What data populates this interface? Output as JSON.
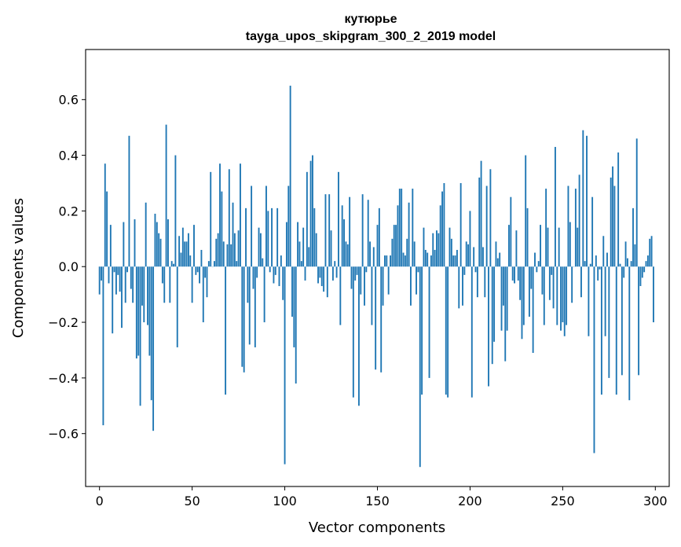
{
  "chart_data": {
    "type": "bar",
    "title": "кутюрье",
    "subtitle": "tayga_upos_skipgram_300_2_2019 model",
    "xlabel": "Vector components",
    "ylabel": "Components values",
    "xlim": [
      -7.5,
      307.5
    ],
    "ylim": [
      -0.79,
      0.78
    ],
    "xticks": [
      0,
      50,
      100,
      150,
      200,
      250,
      300
    ],
    "yticks": [
      -0.6,
      -0.4,
      -0.2,
      0.0,
      0.2,
      0.4,
      0.6
    ],
    "ytick_labels": [
      "−0.6",
      "−0.4",
      "−0.2",
      "0.0",
      "0.2",
      "0.4",
      "0.6"
    ],
    "bar_color": "#1f77b4",
    "x": [
      0,
      1,
      2,
      3,
      4,
      5,
      6,
      7,
      8,
      9,
      10,
      11,
      12,
      13,
      14,
      15,
      16,
      17,
      18,
      19,
      20,
      21,
      22,
      23,
      24,
      25,
      26,
      27,
      28,
      29,
      30,
      31,
      32,
      33,
      34,
      35,
      36,
      37,
      38,
      39,
      40,
      41,
      42,
      43,
      44,
      45,
      46,
      47,
      48,
      49,
      50,
      51,
      52,
      53,
      54,
      55,
      56,
      57,
      58,
      59,
      60,
      61,
      62,
      63,
      64,
      65,
      66,
      67,
      68,
      69,
      70,
      71,
      72,
      73,
      74,
      75,
      76,
      77,
      78,
      79,
      80,
      81,
      82,
      83,
      84,
      85,
      86,
      87,
      88,
      89,
      90,
      91,
      92,
      93,
      94,
      95,
      96,
      97,
      98,
      99,
      100,
      101,
      102,
      103,
      104,
      105,
      106,
      107,
      108,
      109,
      110,
      111,
      112,
      113,
      114,
      115,
      116,
      117,
      118,
      119,
      120,
      121,
      122,
      123,
      124,
      125,
      126,
      127,
      128,
      129,
      130,
      131,
      132,
      133,
      134,
      135,
      136,
      137,
      138,
      139,
      140,
      141,
      142,
      143,
      144,
      145,
      146,
      147,
      148,
      149,
      150,
      151,
      152,
      153,
      154,
      155,
      156,
      157,
      158,
      159,
      160,
      161,
      162,
      163,
      164,
      165,
      166,
      167,
      168,
      169,
      170,
      171,
      172,
      173,
      174,
      175,
      176,
      177,
      178,
      179,
      180,
      181,
      182,
      183,
      184,
      185,
      186,
      187,
      188,
      189,
      190,
      191,
      192,
      193,
      194,
      195,
      196,
      197,
      198,
      199,
      200,
      201,
      202,
      203,
      204,
      205,
      206,
      207,
      208,
      209,
      210,
      211,
      212,
      213,
      214,
      215,
      216,
      217,
      218,
      219,
      220,
      221,
      222,
      223,
      224,
      225,
      226,
      227,
      228,
      229,
      230,
      231,
      232,
      233,
      234,
      235,
      236,
      237,
      238,
      239,
      240,
      241,
      242,
      243,
      244,
      245,
      246,
      247,
      248,
      249,
      250,
      251,
      252,
      253,
      254,
      255,
      256,
      257,
      258,
      259,
      260,
      261,
      262,
      263,
      264,
      265,
      266,
      267,
      268,
      269,
      270,
      271,
      272,
      273,
      274,
      275,
      276,
      277,
      278,
      279,
      280,
      281,
      282,
      283,
      284,
      285,
      286,
      287,
      288,
      289,
      290,
      291,
      292,
      293,
      294,
      295,
      296,
      297,
      298,
      299
    ],
    "values": [
      -0.1,
      -0.05,
      -0.57,
      0.37,
      0.27,
      -0.06,
      0.15,
      -0.24,
      -0.02,
      -0.1,
      -0.03,
      -0.09,
      -0.22,
      0.16,
      -0.13,
      -0.02,
      0.47,
      -0.08,
      -0.13,
      0.17,
      -0.33,
      -0.32,
      -0.5,
      -0.14,
      -0.2,
      0.23,
      -0.21,
      -0.32,
      -0.48,
      -0.59,
      0.19,
      0.16,
      0.12,
      0.1,
      -0.06,
      -0.13,
      0.51,
      0.17,
      -0.13,
      0.02,
      0.01,
      0.4,
      -0.29,
      0.11,
      0.05,
      0.14,
      0.09,
      0.09,
      0.12,
      0.04,
      -0.13,
      0.15,
      -0.03,
      -0.02,
      -0.06,
      0.06,
      -0.2,
      -0.04,
      -0.11,
      0.02,
      0.34,
      0.0,
      0.02,
      0.1,
      0.12,
      0.37,
      0.27,
      0.09,
      -0.46,
      0.08,
      0.35,
      0.08,
      0.23,
      0.12,
      0.02,
      0.13,
      0.37,
      -0.36,
      -0.38,
      0.21,
      -0.13,
      -0.28,
      0.29,
      -0.08,
      -0.29,
      -0.04,
      0.14,
      0.12,
      0.03,
      -0.2,
      0.29,
      0.2,
      -0.02,
      0.21,
      -0.06,
      -0.03,
      0.21,
      -0.07,
      0.04,
      -0.12,
      -0.71,
      0.16,
      0.29,
      0.65,
      -0.18,
      -0.29,
      -0.42,
      0.16,
      0.09,
      0.02,
      0.14,
      -0.05,
      0.34,
      0.07,
      0.38,
      0.4,
      0.21,
      0.12,
      -0.06,
      -0.04,
      -0.07,
      -0.09,
      0.26,
      -0.11,
      0.26,
      0.13,
      -0.05,
      0.02,
      -0.04,
      0.34,
      -0.21,
      0.22,
      0.17,
      0.09,
      0.08,
      0.25,
      -0.08,
      -0.47,
      -0.05,
      -0.03,
      -0.5,
      -0.1,
      0.26,
      -0.14,
      -0.02,
      0.24,
      0.09,
      -0.21,
      0.07,
      -0.37,
      0.15,
      0.21,
      -0.38,
      -0.14,
      0.04,
      0.04,
      -0.1,
      0.04,
      0.1,
      0.15,
      0.15,
      0.22,
      0.28,
      0.28,
      0.05,
      0.04,
      0.1,
      0.23,
      -0.14,
      0.28,
      0.09,
      -0.1,
      -0.02,
      -0.72,
      -0.46,
      0.14,
      0.06,
      0.05,
      -0.4,
      0.04,
      0.12,
      0.06,
      0.13,
      0.12,
      0.22,
      0.27,
      0.3,
      -0.46,
      -0.47,
      0.14,
      0.1,
      0.04,
      0.04,
      0.06,
      -0.15,
      0.3,
      -0.14,
      -0.03,
      0.09,
      0.08,
      0.2,
      -0.47,
      0.07,
      -0.02,
      -0.11,
      0.32,
      0.38,
      0.07,
      -0.11,
      0.29,
      -0.43,
      0.35,
      -0.35,
      -0.27,
      0.09,
      0.03,
      0.05,
      -0.23,
      -0.14,
      -0.34,
      -0.23,
      0.15,
      0.25,
      -0.05,
      -0.06,
      0.13,
      -0.05,
      -0.12,
      -0.26,
      -0.21,
      0.4,
      0.21,
      -0.18,
      -0.08,
      -0.31,
      0.05,
      -0.02,
      0.02,
      0.15,
      -0.1,
      -0.21,
      0.28,
      0.14,
      -0.12,
      -0.03,
      -0.15,
      0.43,
      -0.21,
      0.14,
      -0.23,
      -0.2,
      -0.25,
      -0.21,
      0.29,
      0.16,
      -0.13,
      0.0,
      0.28,
      0.14,
      0.33,
      -0.11,
      0.49,
      0.02,
      0.47,
      -0.25,
      0.01,
      0.25,
      -0.67,
      0.04,
      -0.05,
      -0.01,
      -0.46,
      0.11,
      -0.25,
      0.05,
      -0.4,
      0.32,
      0.36,
      0.29,
      -0.46,
      0.41,
      0.01,
      -0.39,
      -0.04,
      0.09,
      0.03,
      -0.48,
      0.02,
      0.21,
      0.08,
      0.46,
      -0.39,
      -0.07,
      -0.04,
      -0.02,
      0.02,
      0.04,
      0.1,
      0.11,
      -0.2
    ]
  }
}
